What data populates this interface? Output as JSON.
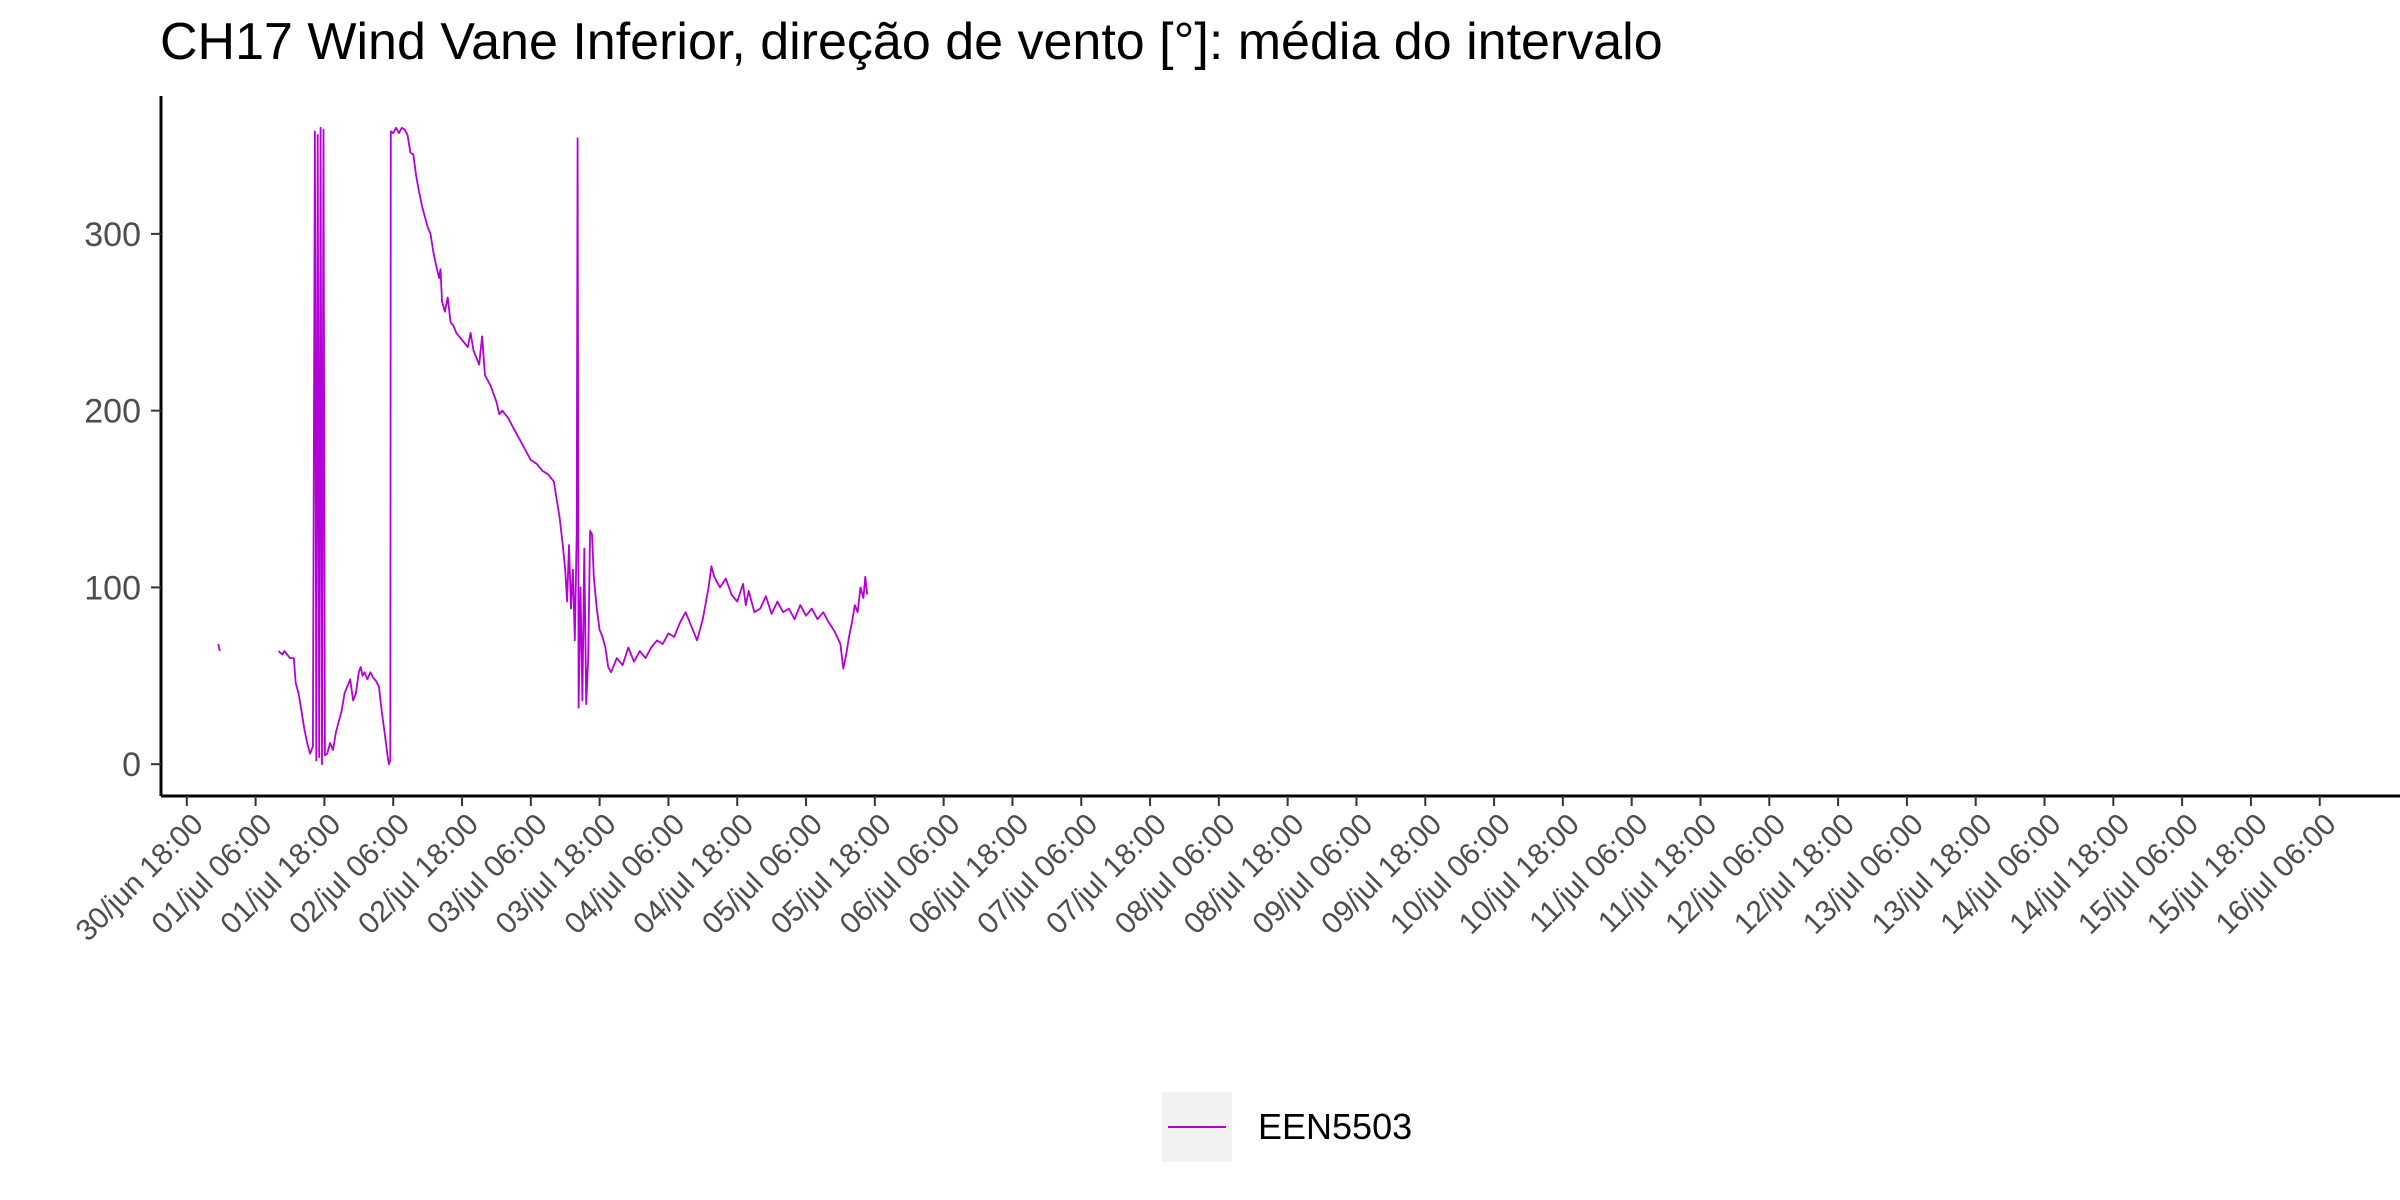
{
  "chart_data": {
    "type": "line",
    "title": "CH17 Wind Vane Inferior, direção de vento [°]: média do intervalo",
    "xlabel": "",
    "ylabel": "",
    "x_ticks": [
      "30/jun 18:00",
      "01/jul 06:00",
      "01/jul 18:00",
      "02/jul 06:00",
      "02/jul 18:00",
      "03/jul 06:00",
      "03/jul 18:00",
      "04/jul 06:00",
      "04/jul 18:00",
      "05/jul 06:00",
      "05/jul 18:00",
      "06/jul 06:00",
      "06/jul 18:00",
      "07/jul 06:00",
      "07/jul 18:00",
      "08/jul 06:00",
      "08/jul 18:00",
      "09/jul 06:00",
      "09/jul 18:00",
      "10/jul 06:00",
      "10/jul 18:00",
      "11/jul 06:00",
      "11/jul 18:00",
      "12/jul 06:00",
      "12/jul 18:00",
      "13/jul 06:00",
      "13/jul 18:00",
      "14/jul 06:00",
      "14/jul 18:00",
      "15/jul 06:00",
      "15/jul 18:00",
      "16/jul 06:00"
    ],
    "y_ticks": [
      0,
      100,
      200,
      300
    ],
    "xlim": [
      "30/jun 13:30",
      "16/jul 20:00"
    ],
    "ylim": [
      -18,
      378
    ],
    "grid": false,
    "legend_position": "bottom",
    "series": [
      {
        "name": "EEN5503",
        "color": "#b200d6",
        "segments": [
          [
            [
              "30/jun 23:30",
              68
            ],
            [
              "30/jun 23:45",
              64
            ]
          ],
          [
            [
              "01/jul 10:00",
              64
            ],
            [
              "01/jul 10:40",
              62
            ],
            [
              "01/jul 11:00",
              64
            ],
            [
              "01/jul 12:00",
              60
            ],
            [
              "01/jul 12:40",
              60
            ],
            [
              "01/jul 13:00",
              46
            ],
            [
              "01/jul 13:30",
              40
            ],
            [
              "01/jul 14:00",
              30
            ],
            [
              "01/jul 14:30",
              20
            ],
            [
              "01/jul 15:00",
              12
            ],
            [
              "01/jul 15:30",
              6
            ],
            [
              "01/jul 16:00",
              10
            ],
            [
              "01/jul 16:20",
              358
            ],
            [
              "01/jul 16:35",
              2
            ],
            [
              "01/jul 16:50",
              356
            ],
            [
              "01/jul 17:05",
              4
            ],
            [
              "01/jul 17:20",
              360
            ],
            [
              "01/jul 17:35",
              0
            ],
            [
              "01/jul 17:50",
              359
            ],
            [
              "01/jul 18:05",
              5
            ],
            [
              "01/jul 18:30",
              6
            ],
            [
              "01/jul 19:00",
              12
            ],
            [
              "01/jul 19:30",
              8
            ],
            [
              "01/jul 20:00",
              18
            ],
            [
              "01/jul 20:30",
              24
            ],
            [
              "01/jul 21:00",
              30
            ],
            [
              "01/jul 21:30",
              40
            ],
            [
              "01/jul 22:00",
              44
            ],
            [
              "01/jul 22:30",
              48
            ],
            [
              "01/jul 23:00",
              36
            ],
            [
              "01/jul 23:30",
              40
            ],
            [
              "02/jul 00:00",
              52
            ],
            [
              "02/jul 00:20",
              55
            ],
            [
              "02/jul 00:40",
              50
            ],
            [
              "02/jul 01:00",
              52
            ],
            [
              "02/jul 01:30",
              48
            ],
            [
              "02/jul 02:00",
              52
            ],
            [
              "02/jul 02:30",
              49
            ],
            [
              "02/jul 03:00",
              47
            ],
            [
              "02/jul 03:30",
              44
            ],
            [
              "02/jul 04:00",
              30
            ],
            [
              "02/jul 04:30",
              18
            ],
            [
              "02/jul 05:00",
              5
            ],
            [
              "02/jul 05:15",
              0
            ],
            [
              "02/jul 05:30",
              2
            ],
            [
              "02/jul 05:35",
              358
            ],
            [
              "02/jul 06:00",
              357
            ],
            [
              "02/jul 06:30",
              360
            ],
            [
              "02/jul 07:00",
              357
            ],
            [
              "02/jul 07:30",
              360
            ],
            [
              "02/jul 08:00",
              359
            ],
            [
              "02/jul 08:30",
              356
            ],
            [
              "02/jul 09:00",
              346
            ],
            [
              "02/jul 09:30",
              345
            ],
            [
              "02/jul 10:00",
              333
            ],
            [
              "02/jul 10:30",
              324
            ],
            [
              "02/jul 11:00",
              316
            ],
            [
              "02/jul 11:30",
              310
            ],
            [
              "02/jul 12:00",
              304
            ],
            [
              "02/jul 12:30",
              300
            ],
            [
              "02/jul 13:00",
              290
            ],
            [
              "02/jul 13:30",
              282
            ],
            [
              "02/jul 14:00",
              275
            ],
            [
              "02/jul 14:15",
              280
            ],
            [
              "02/jul 14:30",
              262
            ],
            [
              "02/jul 15:00",
              256
            ],
            [
              "02/jul 15:30",
              264
            ],
            [
              "02/jul 16:00",
              250
            ],
            [
              "02/jul 16:30",
              248
            ],
            [
              "02/jul 17:00",
              244
            ],
            [
              "02/jul 18:00",
              240
            ],
            [
              "02/jul 19:00",
              236
            ],
            [
              "02/jul 19:30",
              244
            ],
            [
              "02/jul 20:00",
              234
            ],
            [
              "02/jul 21:00",
              226
            ],
            [
              "02/jul 21:30",
              242
            ],
            [
              "02/jul 22:00",
              220
            ],
            [
              "02/jul 23:00",
              214
            ],
            [
              "03/jul 00:00",
              205
            ],
            [
              "03/jul 00:30",
              198
            ],
            [
              "03/jul 01:00",
              200
            ],
            [
              "03/jul 02:00",
              196
            ],
            [
              "03/jul 03:00",
              190
            ],
            [
              "03/jul 04:00",
              184
            ],
            [
              "03/jul 05:00",
              178
            ],
            [
              "03/jul 06:00",
              172
            ],
            [
              "03/jul 07:00",
              170
            ],
            [
              "03/jul 08:00",
              166
            ],
            [
              "03/jul 09:00",
              164
            ],
            [
              "03/jul 10:00",
              160
            ],
            [
              "03/jul 10:30",
              150
            ],
            [
              "03/jul 11:00",
              140
            ],
            [
              "03/jul 11:30",
              126
            ],
            [
              "03/jul 12:00",
              110
            ],
            [
              "03/jul 12:20",
              92
            ],
            [
              "03/jul 12:40",
              124
            ],
            [
              "03/jul 13:00",
              88
            ],
            [
              "03/jul 13:20",
              110
            ],
            [
              "03/jul 13:40",
              70
            ],
            [
              "03/jul 14:00",
              130
            ],
            [
              "03/jul 14:10",
              354
            ],
            [
              "03/jul 14:20",
              32
            ],
            [
              "03/jul 14:40",
              100
            ],
            [
              "03/jul 15:00",
              36
            ],
            [
              "03/jul 15:20",
              122
            ],
            [
              "03/jul 15:40",
              34
            ],
            [
              "03/jul 16:00",
              60
            ],
            [
              "03/jul 16:20",
              132
            ],
            [
              "03/jul 16:40",
              130
            ],
            [
              "03/jul 17:00",
              105
            ],
            [
              "03/jul 17:30",
              88
            ],
            [
              "03/jul 18:00",
              76
            ],
            [
              "03/jul 18:30",
              72
            ],
            [
              "03/jul 19:00",
              66
            ],
            [
              "03/jul 19:30",
              55
            ],
            [
              "03/jul 20:00",
              52
            ],
            [
              "03/jul 21:00",
              60
            ],
            [
              "03/jul 22:00",
              56
            ],
            [
              "03/jul 23:00",
              66
            ],
            [
              "04/jul 00:00",
              58
            ],
            [
              "04/jul 01:00",
              64
            ],
            [
              "04/jul 02:00",
              60
            ],
            [
              "04/jul 03:00",
              66
            ],
            [
              "04/jul 04:00",
              70
            ],
            [
              "04/jul 05:00",
              68
            ],
            [
              "04/jul 06:00",
              74
            ],
            [
              "04/jul 07:00",
              72
            ],
            [
              "04/jul 08:00",
              80
            ],
            [
              "04/jul 09:00",
              86
            ],
            [
              "04/jul 10:00",
              78
            ],
            [
              "04/jul 11:00",
              70
            ],
            [
              "04/jul 12:00",
              82
            ],
            [
              "04/jul 13:00",
              100
            ],
            [
              "04/jul 13:30",
              112
            ],
            [
              "04/jul 14:00",
              106
            ],
            [
              "04/jul 15:00",
              100
            ],
            [
              "04/jul 16:00",
              105
            ],
            [
              "04/jul 17:00",
              96
            ],
            [
              "04/jul 18:00",
              92
            ],
            [
              "04/jul 19:00",
              102
            ],
            [
              "04/jul 19:30",
              90
            ],
            [
              "04/jul 20:00",
              98
            ],
            [
              "04/jul 21:00",
              86
            ],
            [
              "04/jul 22:00",
              88
            ],
            [
              "04/jul 23:00",
              95
            ],
            [
              "05/jul 00:00",
              85
            ],
            [
              "05/jul 01:00",
              92
            ],
            [
              "05/jul 02:00",
              86
            ],
            [
              "05/jul 03:00",
              88
            ],
            [
              "05/jul 04:00",
              82
            ],
            [
              "05/jul 05:00",
              90
            ],
            [
              "05/jul 06:00",
              84
            ],
            [
              "05/jul 07:00",
              88
            ],
            [
              "05/jul 08:00",
              82
            ],
            [
              "05/jul 09:00",
              86
            ],
            [
              "05/jul 10:00",
              80
            ],
            [
              "05/jul 11:00",
              75
            ],
            [
              "05/jul 12:00",
              68
            ],
            [
              "05/jul 12:30",
              54
            ],
            [
              "05/jul 13:00",
              62
            ],
            [
              "05/jul 13:30",
              72
            ],
            [
              "05/jul 14:00",
              80
            ],
            [
              "05/jul 14:30",
              90
            ],
            [
              "05/jul 15:00",
              86
            ],
            [
              "05/jul 15:30",
              100
            ],
            [
              "05/jul 16:00",
              94
            ],
            [
              "05/jul 16:20",
              106
            ],
            [
              "05/jul 16:40",
              96
            ]
          ]
        ]
      }
    ]
  }
}
